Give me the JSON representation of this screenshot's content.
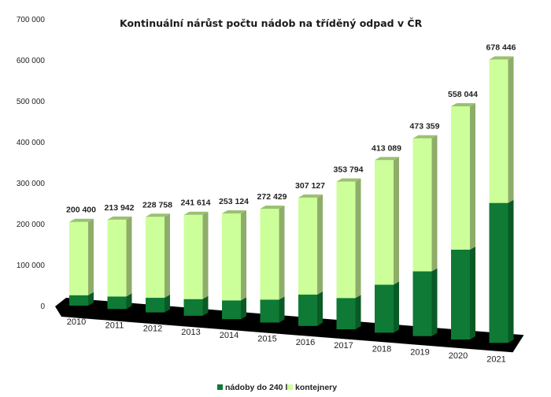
{
  "chart_data": {
    "type": "bar",
    "stacked": true,
    "style": "3d",
    "title": "Kontinuální nárůst počtu nádob na tříděný odpad v ČR",
    "xlabel": "",
    "ylabel": "",
    "ylim": [
      0,
      700000
    ],
    "yticks": [
      0,
      100000,
      200000,
      300000,
      400000,
      500000,
      600000,
      700000
    ],
    "ytick_labels": [
      "0",
      "100 000",
      "200 000",
      "300 000",
      "400 000",
      "500 000",
      "600 000",
      "700 000"
    ],
    "grid": false,
    "categories": [
      "2010",
      "2011",
      "2012",
      "2013",
      "2014",
      "2015",
      "2016",
      "2017",
      "2018",
      "2019",
      "2020",
      "2021"
    ],
    "series": [
      {
        "name": "nádoby do 240 l",
        "color": "#0e7a35",
        "values": [
          25000,
          30000,
          35000,
          40000,
          45000,
          55000,
          75000,
          75000,
          115000,
          155000,
          215000,
          335000
        ]
      },
      {
        "name": "kontejnery",
        "color": "#ccff99",
        "values": [
          175400,
          183942,
          193758,
          201614,
          208124,
          217429,
          232127,
          278794,
          298089,
          318359,
          343044,
          343446
        ]
      }
    ],
    "totals": [
      200400,
      213942,
      228758,
      241614,
      253124,
      272429,
      307127,
      353794,
      413089,
      473359,
      558044,
      678446
    ],
    "total_labels": [
      "200 400",
      "213 942",
      "228 758",
      "241 614",
      "253 124",
      "272 429",
      "307 127",
      "353 794",
      "413 089",
      "473 359",
      "558 044",
      "678 446"
    ],
    "legend": {
      "position": "bottom-center",
      "entries": [
        "nádoby do 240 l",
        "kontejnery"
      ]
    }
  }
}
